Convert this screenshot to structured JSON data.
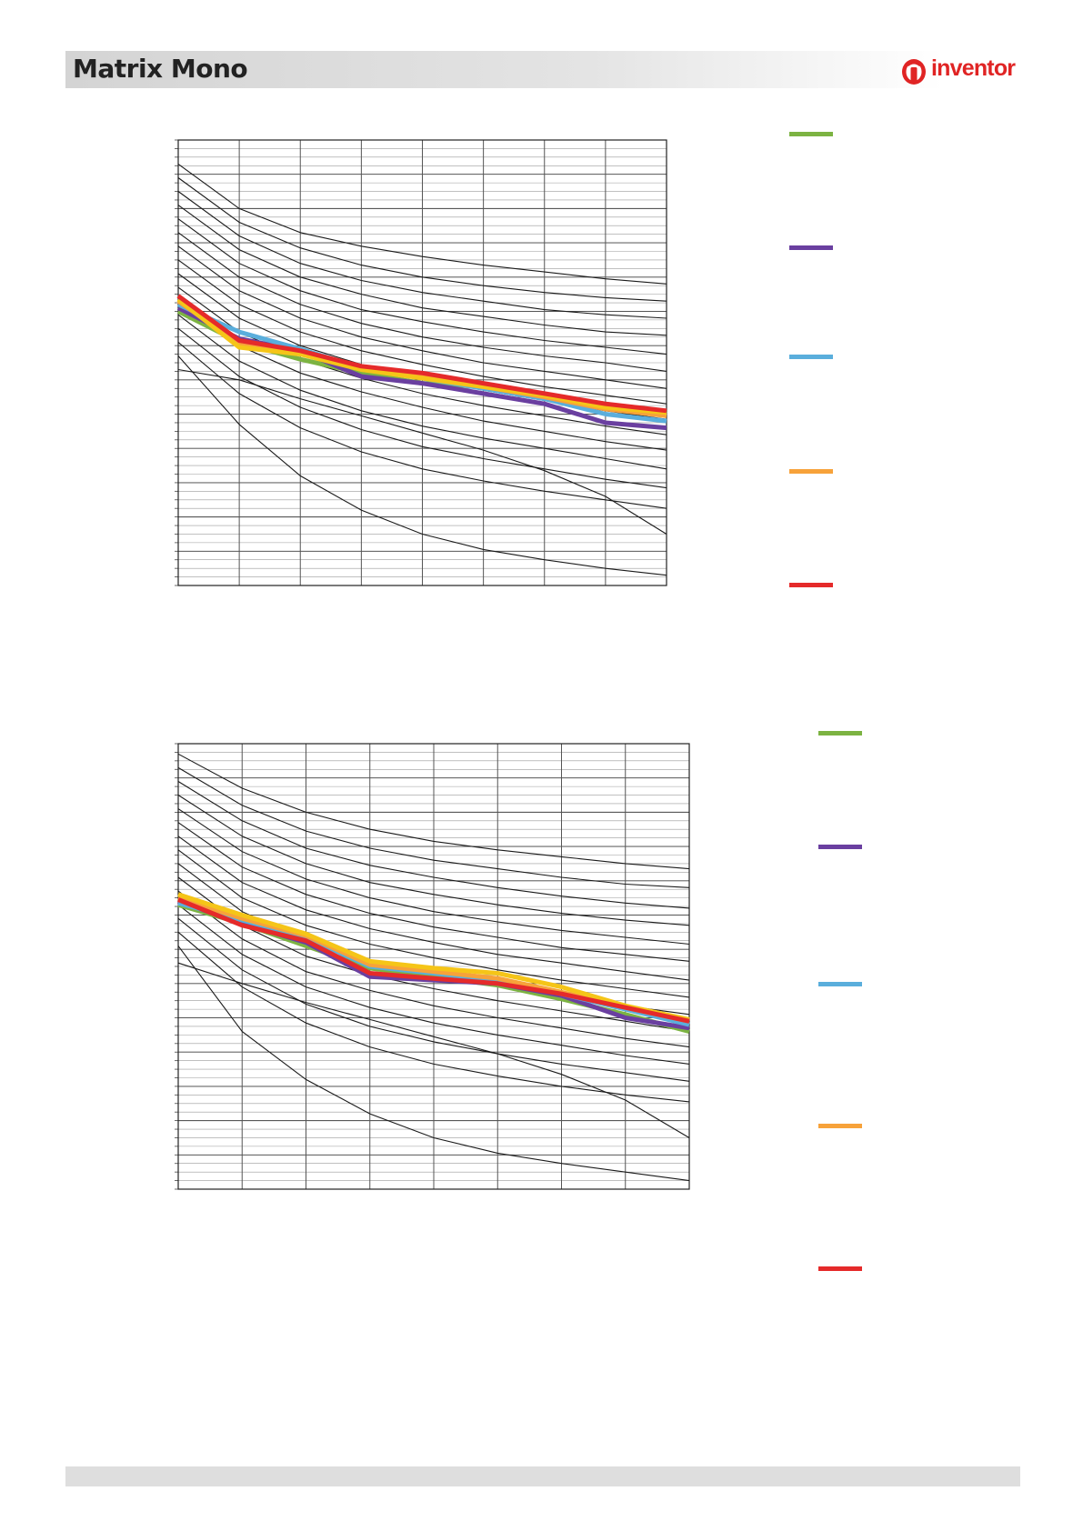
{
  "header": {
    "title": "Matrix Mono",
    "brand": "inventor"
  },
  "colors": {
    "header_bg": "#dcdcdc",
    "brand_red": "#e02424",
    "series_green": "#7cb342",
    "series_purple": "#6a3fa0",
    "series_blue": "#5aaedc",
    "series_orange": "#f7a23a",
    "series_yellow": "#f5c518",
    "series_red": "#e52a2a",
    "grid": "#555555"
  },
  "chart_data": [
    {
      "type": "line",
      "title": "",
      "xlabel": "",
      "ylabel": "",
      "x": [
        0,
        1,
        2,
        3,
        4,
        5,
        6,
        7,
        8
      ],
      "xlim": [
        0,
        8
      ],
      "ylim": [
        0,
        13
      ],
      "grid": true,
      "background_curves": [
        [
          12.3,
          11.0,
          10.3,
          9.9,
          9.6,
          9.35,
          9.15,
          8.95,
          8.8
        ],
        [
          11.9,
          10.6,
          9.85,
          9.35,
          9.0,
          8.75,
          8.55,
          8.4,
          8.3
        ],
        [
          11.5,
          10.2,
          9.4,
          8.9,
          8.55,
          8.3,
          8.05,
          7.9,
          7.8
        ],
        [
          11.1,
          9.8,
          9.0,
          8.5,
          8.1,
          7.85,
          7.6,
          7.4,
          7.3
        ],
        [
          10.7,
          9.4,
          8.6,
          8.05,
          7.7,
          7.4,
          7.15,
          6.95,
          6.75
        ],
        [
          10.3,
          9.0,
          8.2,
          7.65,
          7.25,
          6.95,
          6.7,
          6.5,
          6.25
        ],
        [
          9.9,
          8.6,
          7.8,
          7.25,
          6.85,
          6.5,
          6.25,
          6.0,
          5.75
        ],
        [
          9.5,
          8.2,
          7.4,
          6.85,
          6.45,
          6.1,
          5.8,
          5.55,
          5.3
        ],
        [
          9.1,
          7.8,
          7.0,
          6.45,
          6.05,
          5.7,
          5.4,
          5.1,
          4.85
        ],
        [
          8.7,
          7.4,
          6.6,
          6.05,
          5.6,
          5.25,
          4.95,
          4.65,
          4.4
        ],
        [
          8.3,
          7.0,
          6.2,
          5.65,
          5.2,
          4.8,
          4.5,
          4.2,
          3.95
        ],
        [
          7.9,
          6.55,
          5.7,
          5.1,
          4.65,
          4.3,
          4.0,
          3.7,
          3.4
        ],
        [
          7.5,
          6.1,
          5.2,
          4.55,
          4.05,
          3.7,
          3.4,
          3.1,
          2.85
        ],
        [
          7.1,
          5.6,
          4.6,
          3.9,
          3.4,
          3.05,
          2.75,
          2.5,
          2.25
        ],
        [
          6.7,
          4.7,
          3.2,
          2.2,
          1.5,
          1.05,
          0.75,
          0.5,
          0.3
        ],
        [
          6.3,
          6.0,
          5.45,
          4.95,
          4.45,
          3.95,
          3.35,
          2.6,
          1.5
        ]
      ],
      "series": [
        {
          "color": "#7cb342",
          "values": [
            8.0,
            7.1,
            6.6,
            6.2,
            5.9,
            5.8,
            5.55,
            5.3,
            5.0
          ]
        },
        {
          "color": "#6a3fa0",
          "values": [
            8.1,
            7.2,
            6.85,
            6.1,
            5.9,
            5.6,
            5.3,
            4.75,
            4.6
          ]
        },
        {
          "color": "#5aaedc",
          "values": [
            8.2,
            7.4,
            6.9,
            6.35,
            6.05,
            5.75,
            5.45,
            5.0,
            4.8
          ]
        },
        {
          "color": "#f7a23a",
          "values": [
            8.3,
            7.05,
            6.8,
            6.3,
            6.1,
            5.8,
            5.5,
            5.15,
            4.95
          ]
        },
        {
          "color": "#f5c518",
          "values": [
            8.35,
            6.95,
            6.75,
            6.3,
            6.05,
            5.8,
            5.55,
            5.2,
            5.05
          ]
        },
        {
          "color": "#e52a2a",
          "values": [
            8.45,
            7.15,
            6.85,
            6.4,
            6.2,
            5.9,
            5.6,
            5.3,
            5.1
          ]
        }
      ],
      "legend": [
        {
          "color": "#7cb342"
        },
        {
          "color": "#6a3fa0"
        },
        {
          "color": "#5aaedc"
        },
        {
          "color": "#f7a23a"
        },
        {
          "color": "#e52a2a"
        }
      ]
    },
    {
      "type": "line",
      "title": "",
      "xlabel": "",
      "ylabel": "",
      "x": [
        0,
        1,
        2,
        3,
        4,
        5,
        6,
        7,
        8
      ],
      "xlim": [
        0,
        8
      ],
      "ylim": [
        0,
        13
      ],
      "grid": true,
      "background_curves": [
        [
          12.7,
          11.7,
          11.0,
          10.5,
          10.15,
          9.9,
          9.7,
          9.5,
          9.35
        ],
        [
          12.3,
          11.2,
          10.45,
          9.95,
          9.6,
          9.35,
          9.1,
          8.9,
          8.8
        ],
        [
          11.9,
          10.75,
          9.95,
          9.45,
          9.1,
          8.8,
          8.55,
          8.35,
          8.2
        ],
        [
          11.5,
          10.3,
          9.5,
          8.95,
          8.6,
          8.3,
          8.05,
          7.85,
          7.7
        ],
        [
          11.1,
          9.85,
          9.05,
          8.5,
          8.1,
          7.8,
          7.55,
          7.35,
          7.15
        ],
        [
          10.7,
          9.4,
          8.6,
          8.05,
          7.65,
          7.35,
          7.05,
          6.85,
          6.65
        ],
        [
          10.3,
          8.95,
          8.15,
          7.6,
          7.2,
          6.85,
          6.6,
          6.35,
          6.1
        ],
        [
          9.9,
          8.5,
          7.7,
          7.15,
          6.75,
          6.4,
          6.1,
          5.85,
          5.6
        ],
        [
          9.5,
          8.1,
          7.25,
          6.7,
          6.3,
          5.95,
          5.65,
          5.35,
          5.1
        ],
        [
          9.1,
          7.7,
          6.8,
          6.25,
          5.85,
          5.5,
          5.2,
          4.9,
          4.6
        ],
        [
          8.7,
          7.3,
          6.35,
          5.8,
          5.35,
          5.0,
          4.7,
          4.4,
          4.15
        ],
        [
          8.3,
          6.85,
          5.9,
          5.3,
          4.85,
          4.5,
          4.2,
          3.9,
          3.65
        ],
        [
          7.9,
          6.4,
          5.4,
          4.75,
          4.3,
          3.95,
          3.65,
          3.4,
          3.15
        ],
        [
          7.5,
          5.9,
          4.85,
          4.15,
          3.65,
          3.3,
          3.0,
          2.75,
          2.55
        ],
        [
          7.1,
          4.6,
          3.2,
          2.2,
          1.5,
          1.05,
          0.75,
          0.5,
          0.25
        ],
        [
          6.6,
          6.0,
          5.45,
          4.95,
          4.45,
          3.95,
          3.35,
          2.6,
          1.5
        ]
      ],
      "series": [
        {
          "color": "#7cb342",
          "values": [
            8.3,
            7.75,
            7.1,
            6.45,
            6.2,
            5.95,
            5.55,
            5.1,
            4.6
          ]
        },
        {
          "color": "#6a3fa0",
          "values": [
            8.4,
            7.75,
            7.2,
            6.2,
            6.1,
            6.0,
            5.65,
            5.0,
            4.7
          ]
        },
        {
          "color": "#5aaedc",
          "values": [
            8.35,
            7.85,
            7.35,
            6.5,
            6.3,
            6.1,
            5.7,
            5.25,
            4.8
          ]
        },
        {
          "color": "#f7a23a",
          "values": [
            8.5,
            7.9,
            7.4,
            6.55,
            6.35,
            6.15,
            5.75,
            5.3,
            4.9
          ]
        },
        {
          "color": "#f5c518",
          "values": [
            8.6,
            8.0,
            7.45,
            6.65,
            6.45,
            6.3,
            5.9,
            5.35,
            4.95
          ]
        },
        {
          "color": "#e52a2a",
          "values": [
            8.45,
            7.7,
            7.25,
            6.3,
            6.15,
            6.0,
            5.7,
            5.3,
            4.9
          ]
        }
      ],
      "legend": [
        {
          "color": "#7cb342"
        },
        {
          "color": "#6a3fa0"
        },
        {
          "color": "#5aaedc"
        },
        {
          "color": "#f7a23a"
        },
        {
          "color": "#e52a2a"
        }
      ]
    }
  ]
}
